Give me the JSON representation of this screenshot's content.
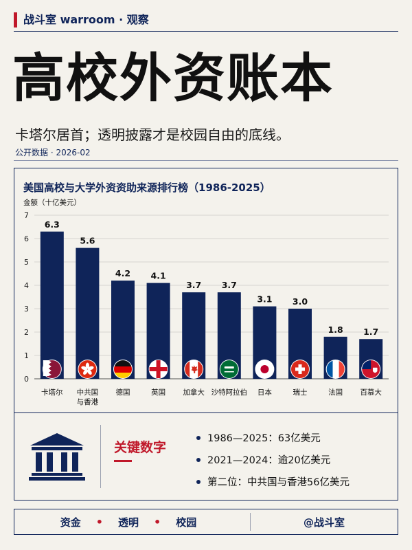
{
  "header": {
    "brand": "战斗室 warroom · 观察"
  },
  "headline": "高校外资账本",
  "subtitle": "卡塔尔居首；透明披露才是校园自由的底线。",
  "source_line": "公开数据 · 2026-02",
  "chart_data": {
    "type": "bar",
    "title": "美国高校与大学外资资助来源排行榜（1986-2025）",
    "ylabel": "金额（十亿美元）",
    "ylim": [
      0,
      7
    ],
    "yticks": [
      0,
      1,
      2,
      3,
      4,
      5,
      6,
      7
    ],
    "categories": [
      [
        "卡塔尔"
      ],
      [
        "中共国",
        "与香港"
      ],
      [
        "德国"
      ],
      [
        "英国"
      ],
      [
        "加拿大"
      ],
      [
        "沙特阿拉伯"
      ],
      [
        "日本"
      ],
      [
        "瑞士"
      ],
      [
        "法国"
      ],
      [
        "百慕大"
      ]
    ],
    "values": [
      6.3,
      5.6,
      4.2,
      4.1,
      3.7,
      3.7,
      3.1,
      3.0,
      1.8,
      1.7
    ],
    "value_labels": [
      "6.3",
      "5.6",
      "4.2",
      "4.1",
      "3.7",
      "3.7",
      "3.1",
      "3.0",
      "1.8",
      "1.7"
    ],
    "flags": [
      "qatar-flag",
      "hong-kong-flag",
      "germany-flag",
      "england-flag",
      "canada-flag",
      "saudi-arabia-flag",
      "japan-flag",
      "switzerland-flag",
      "france-flag",
      "bermuda-flag"
    ],
    "bar_color": "#0f2459",
    "grid": true
  },
  "facts": {
    "heading": "关键数字",
    "items": [
      "1986—2025：63亿美元",
      "2021—2024：逾20亿美元",
      "第二位：中共国与香港56亿美元"
    ]
  },
  "footer": {
    "tags": [
      "资金",
      "透明",
      "校园"
    ],
    "separator": "•",
    "handle": "@战斗室"
  },
  "colors": {
    "navy": "#0f2459",
    "red": "#c0182a",
    "background": "#f4f2ec"
  }
}
